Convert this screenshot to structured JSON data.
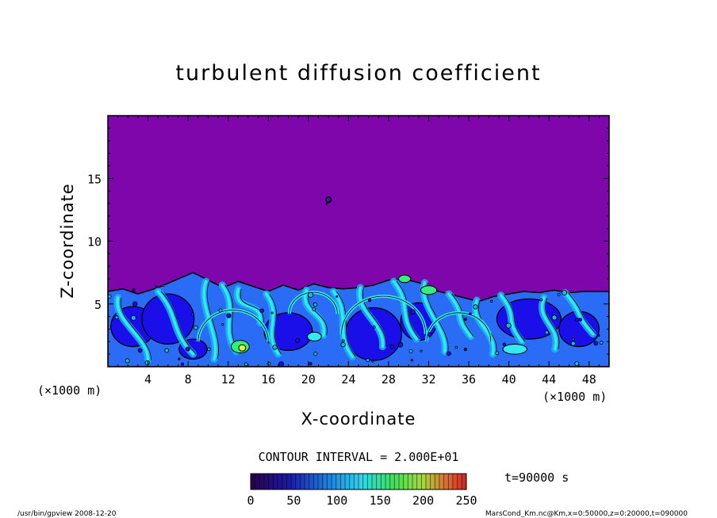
{
  "chart_data": {
    "type": "heatmap",
    "title": "turbulent diffusion coefficient",
    "xlabel": "X-coordinate",
    "ylabel": "Z-coordinate",
    "x_unit": "(×1000 m)",
    "y_unit": "(×1000 m)",
    "xlim": [
      0,
      50
    ],
    "ylim": [
      0,
      20
    ],
    "x_ticks": [
      "4",
      "8",
      "12",
      "16",
      "20",
      "24",
      "28",
      "32",
      "36",
      "40",
      "44",
      "48"
    ],
    "y_ticks": [
      "5",
      "10",
      "15"
    ],
    "x_tick_values": [
      4,
      8,
      12,
      16,
      20,
      24,
      28,
      32,
      36,
      40,
      44,
      48
    ],
    "y_tick_values": [
      5,
      10,
      15
    ],
    "contour_interval_text": "CONTOUR INTERVAL = 2.000E+01",
    "contour_interval": 20,
    "colorbar_ticks": [
      "0",
      "50",
      "100",
      "150",
      "200",
      "250"
    ],
    "colorbar_tick_values": [
      0,
      50,
      100,
      150,
      200,
      250
    ],
    "colorbar_range": [
      0,
      250
    ],
    "time_label": "t=90000 s",
    "boundary_layer_top": [
      [
        0,
        6.0
      ],
      [
        1.5,
        6.2
      ],
      [
        3,
        5.8
      ],
      [
        5,
        6.3
      ],
      [
        7,
        7.0
      ],
      [
        8.5,
        7.5
      ],
      [
        10,
        6.9
      ],
      [
        11.5,
        6.3
      ],
      [
        13,
        6.8
      ],
      [
        14.5,
        6.4
      ],
      [
        16,
        6.0
      ],
      [
        17.5,
        6.5
      ],
      [
        19,
        6.1
      ],
      [
        20.5,
        6.6
      ],
      [
        22,
        6.3
      ],
      [
        23.5,
        6.2
      ],
      [
        25,
        6.3
      ],
      [
        26.5,
        6.5
      ],
      [
        28,
        6.9
      ],
      [
        29.5,
        7.0
      ],
      [
        31,
        6.7
      ],
      [
        32.5,
        6.1
      ],
      [
        34,
        5.8
      ],
      [
        35.5,
        5.5
      ],
      [
        37,
        5.2
      ],
      [
        38.5,
        5.6
      ],
      [
        40,
        5.8
      ],
      [
        41.5,
        6.0
      ],
      [
        43,
        5.9
      ],
      [
        44.5,
        6.1
      ],
      [
        46,
        5.9
      ],
      [
        47.5,
        6.0
      ],
      [
        50,
        6.0
      ]
    ],
    "isolated_blob": [
      22,
      13.3
    ],
    "colors": {
      "background": "#7e06aa",
      "low": "#1a0fe8",
      "mid_low": "#2b6cf6",
      "mid": "#1fb4f0",
      "cyan": "#33e8f0",
      "high": "#34f07a",
      "peak": "#e4f03a"
    }
  },
  "footer": {
    "left": "/usr/bin/gpview   2008-12-20",
    "right": "MarsCond_Km.nc@Km,x=0:50000,z=0:20000,t=090000"
  }
}
